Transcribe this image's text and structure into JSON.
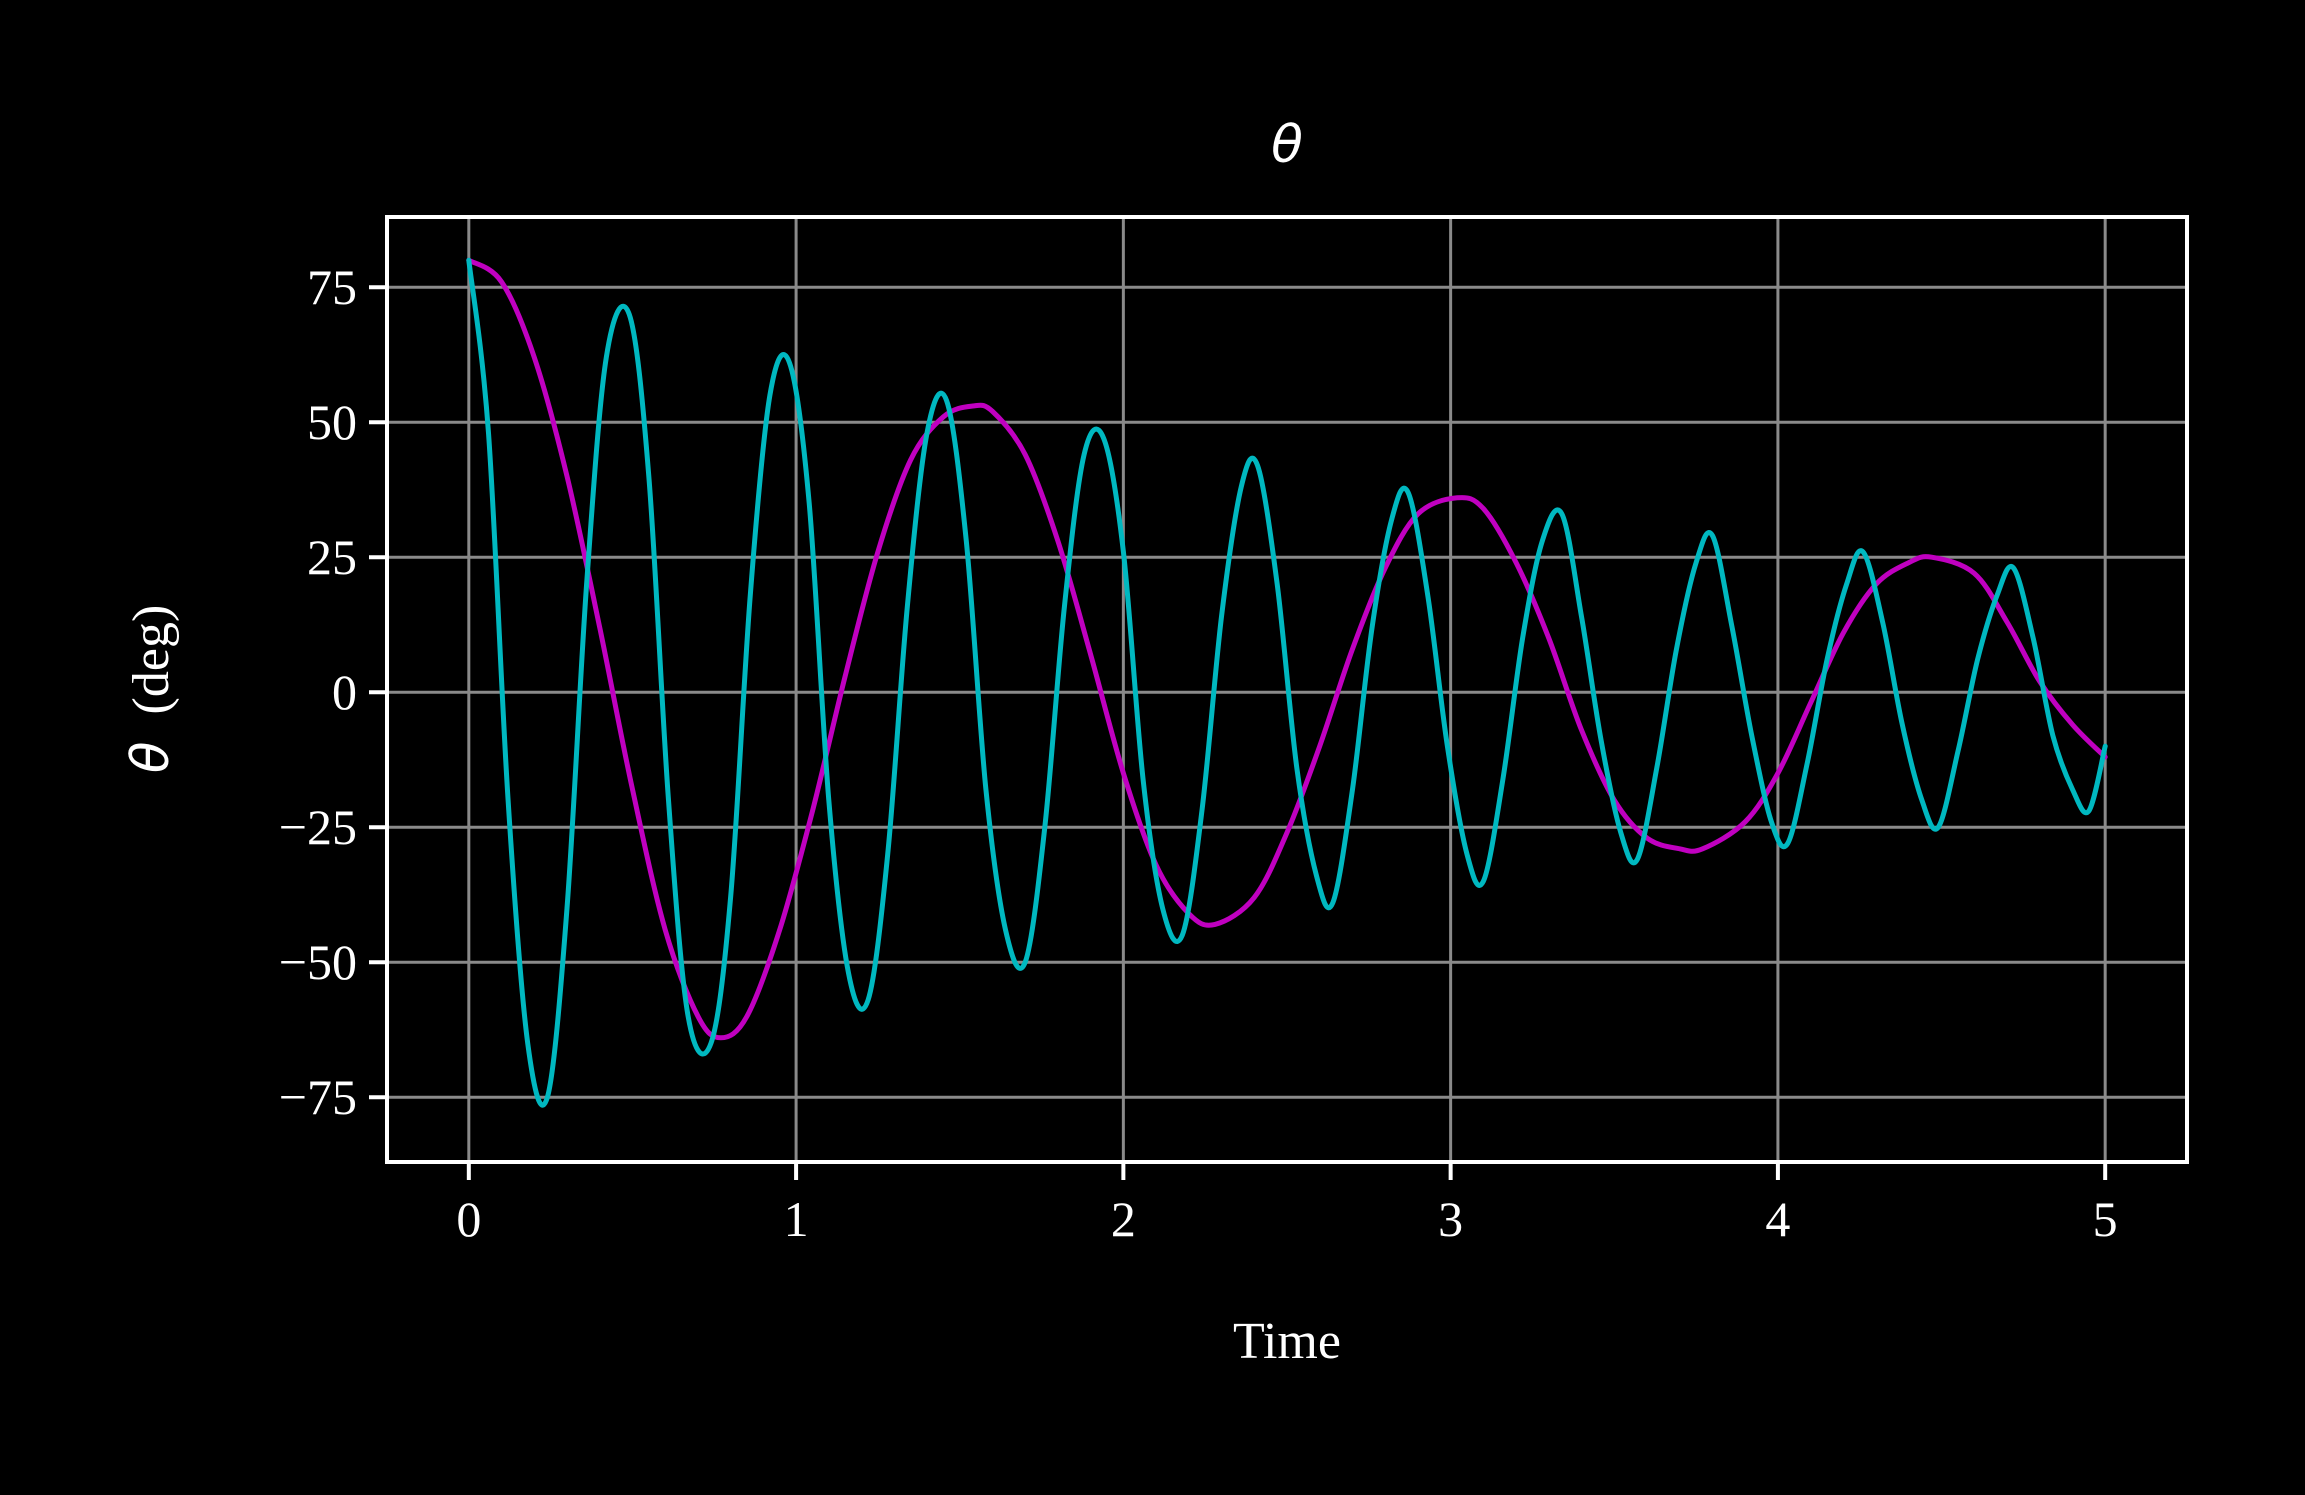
{
  "chart_data": {
    "type": "line",
    "title": "θ",
    "xlabel": "Time",
    "ylabel": {
      "symbol": "θ",
      "unit": "(deg)"
    },
    "xlim": [
      -0.25,
      5.25
    ],
    "ylim": [
      -87,
      88
    ],
    "xticks": [
      0,
      1,
      2,
      3,
      4,
      5
    ],
    "xtick_labels": [
      "0",
      "1",
      "2",
      "3",
      "4",
      "5"
    ],
    "yticks": [
      75,
      50,
      25,
      0,
      -25,
      -50,
      -75
    ],
    "ytick_labels": [
      "75",
      "50",
      "25",
      "0",
      "−25",
      "−50",
      "−75"
    ],
    "grid": true,
    "legend": "none",
    "colors": {
      "background": "#000000",
      "axes": "#ffffff",
      "grid": "#8a8a8a",
      "text": "#ffffff"
    },
    "series": [
      {
        "color": "#c000c0",
        "x": [
          0.0,
          0.1,
          0.2,
          0.3,
          0.4,
          0.5,
          0.6,
          0.7,
          0.77,
          0.85,
          0.95,
          1.05,
          1.15,
          1.25,
          1.35,
          1.45,
          1.54,
          1.6,
          1.7,
          1.8,
          1.9,
          2.0,
          2.1,
          2.2,
          2.28,
          2.4,
          2.5,
          2.6,
          2.7,
          2.8,
          2.9,
          3.02,
          3.1,
          3.2,
          3.3,
          3.4,
          3.5,
          3.6,
          3.7,
          3.77,
          3.9,
          4.0,
          4.1,
          4.2,
          4.3,
          4.4,
          4.47,
          4.6,
          4.7,
          4.8,
          4.9,
          5.0
        ],
        "y": [
          80,
          76,
          62,
          40,
          12,
          -18,
          -44,
          -60,
          -64,
          -60,
          -44,
          -22,
          3,
          26,
          43,
          51,
          53,
          52,
          44,
          28,
          7,
          -15,
          -32,
          -41,
          -43,
          -38,
          -26,
          -10,
          8,
          23,
          33,
          36,
          34,
          24,
          10,
          -7,
          -20,
          -27,
          -29,
          -29,
          -24,
          -15,
          -2,
          11,
          20,
          24,
          25,
          22,
          13,
          2,
          -6,
          -12
        ]
      },
      {
        "color": "#00b8c0",
        "x": [
          0.0,
          0.06,
          0.12,
          0.18,
          0.24,
          0.3,
          0.36,
          0.42,
          0.49,
          0.55,
          0.61,
          0.67,
          0.74,
          0.8,
          0.86,
          0.92,
          0.98,
          1.04,
          1.1,
          1.16,
          1.22,
          1.28,
          1.34,
          1.4,
          1.46,
          1.52,
          1.58,
          1.64,
          1.7,
          1.76,
          1.82,
          1.88,
          1.94,
          2.0,
          2.06,
          2.12,
          2.18,
          2.24,
          2.3,
          2.36,
          2.41,
          2.47,
          2.53,
          2.59,
          2.64,
          2.7,
          2.76,
          2.82,
          2.87,
          2.93,
          2.99,
          3.05,
          3.1,
          3.16,
          3.22,
          3.28,
          3.34,
          3.4,
          3.46,
          3.52,
          3.57,
          3.63,
          3.69,
          3.75,
          3.8,
          3.86,
          3.92,
          3.98,
          4.03,
          4.09,
          4.15,
          4.21,
          4.26,
          4.32,
          4.38,
          4.44,
          4.49,
          4.55,
          4.61,
          4.67,
          4.72,
          4.78,
          4.84,
          4.9,
          4.95,
          5.0
        ],
        "y": [
          80,
          48,
          -20,
          -65,
          -75,
          -40,
          20,
          62,
          70,
          40,
          -20,
          -60,
          -65,
          -38,
          18,
          55,
          61,
          35,
          -20,
          -52,
          -57,
          -30,
          16,
          48,
          54,
          28,
          -18,
          -44,
          -50,
          -25,
          16,
          44,
          47,
          26,
          -16,
          -40,
          -45,
          -22,
          14,
          38,
          42,
          20,
          -14,
          -34,
          -39,
          -18,
          12,
          32,
          37,
          18,
          -10,
          -30,
          -35,
          -16,
          10,
          28,
          33,
          14,
          -9,
          -26,
          -31,
          -14,
          8,
          24,
          29,
          12,
          -8,
          -24,
          -28,
          -13,
          6,
          20,
          26,
          13,
          -6,
          -20,
          -25,
          -11,
          6,
          18,
          23,
          10,
          -8,
          -18,
          -22,
          -10
        ]
      }
    ]
  }
}
